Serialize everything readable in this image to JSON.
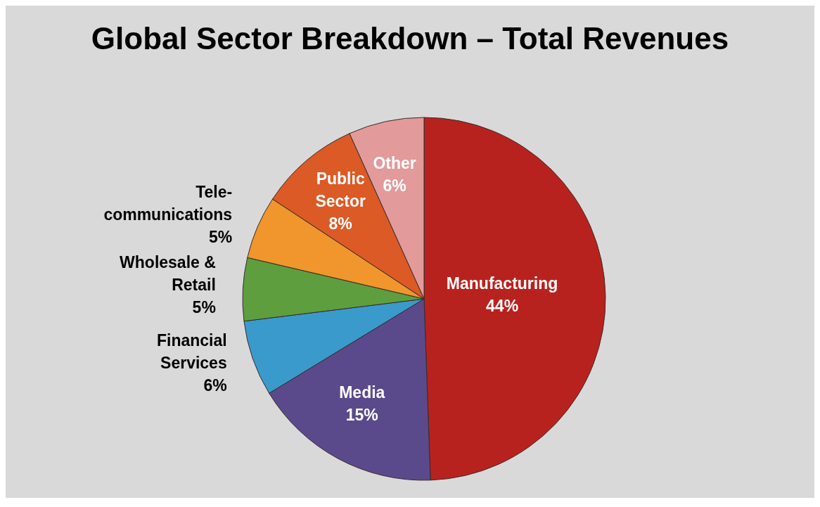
{
  "chart_data": {
    "type": "pie",
    "title": "Global Sector Breakdown – Total Revenues",
    "categories": [
      "Manufacturing",
      "Media",
      "Financial Services",
      "Wholesale & Retail",
      "Tele-communications",
      "Public Sector",
      "Other"
    ],
    "values": [
      44,
      15,
      6,
      5,
      5,
      8,
      6
    ],
    "value_labels": [
      "44%",
      "15%",
      "6%",
      "5%",
      "5%",
      "8%",
      "6%"
    ],
    "colors": [
      "#b8221e",
      "#5a4a8c",
      "#3a9acb",
      "#5e9e3e",
      "#f0962c",
      "#dc5a26",
      "#e29a9a"
    ],
    "legend": false
  }
}
